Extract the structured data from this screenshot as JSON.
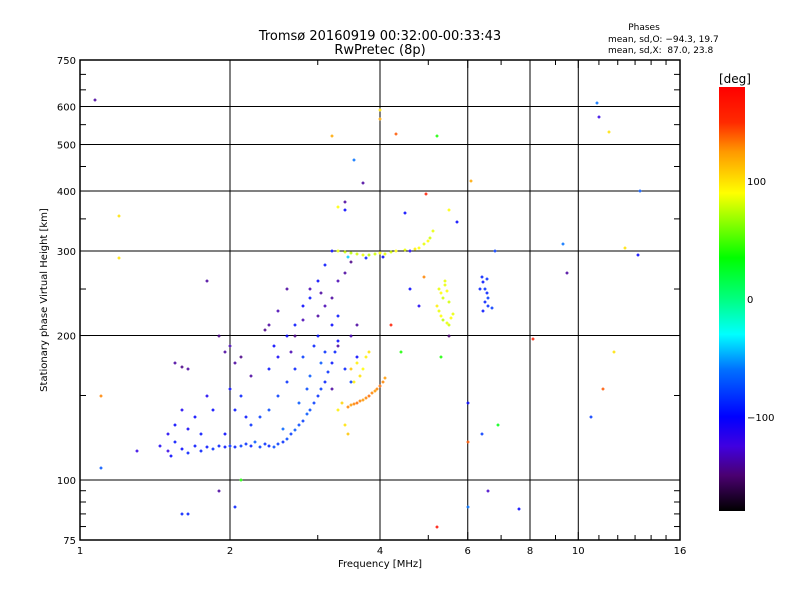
{
  "chart_data": {
    "type": "scatter",
    "title": "Tromsø 20160919 00:32:00-00:33:43",
    "subtitle": "RwPretec (8p)",
    "xlabel": "Frequency [MHz]",
    "ylabel": "Stationary phase Virtual Height [km]",
    "xscale": "log",
    "yscale": "log",
    "xlim": [
      1,
      16
    ],
    "ylim": [
      75,
      750
    ],
    "xticks": [
      1,
      2,
      4,
      6,
      8,
      10,
      16
    ],
    "yticks": [
      75,
      100,
      200,
      300,
      400,
      500,
      600,
      750
    ],
    "xgrid": [
      2,
      4,
      6,
      8,
      10
    ],
    "ygrid": [
      100,
      200,
      300,
      400,
      500,
      600
    ],
    "grid": true,
    "stats": {
      "heading": "Phases",
      "o_line": "mean, sd,O: −94.3, 19.7",
      "x_line": "mean, sd,X:  87.0, 23.8"
    },
    "colorbar": {
      "label": "[deg]",
      "range": [
        -180,
        180
      ],
      "ticks": [
        100,
        0,
        -100
      ],
      "stops": [
        [
          -180,
          "#000000"
        ],
        [
          -150,
          "#4a0070"
        ],
        [
          -125,
          "#4000e0"
        ],
        [
          -100,
          "#0000ff"
        ],
        [
          -60,
          "#0070ff"
        ],
        [
          -30,
          "#00ffff"
        ],
        [
          0,
          "#00ff80"
        ],
        [
          35,
          "#00ff00"
        ],
        [
          90,
          "#ffff00"
        ],
        [
          125,
          "#ff9900"
        ],
        [
          150,
          "#ff2a00"
        ],
        [
          180,
          "#ff0000"
        ]
      ]
    },
    "points_columns": [
      "freq_MHz",
      "height_km",
      "phase_deg"
    ],
    "points": [
      [
        1.45,
        118,
        -110
      ],
      [
        1.5,
        115,
        -120
      ],
      [
        1.52,
        112,
        -100
      ],
      [
        1.55,
        120,
        -95
      ],
      [
        1.6,
        116,
        -100
      ],
      [
        1.65,
        114,
        -90
      ],
      [
        1.7,
        118,
        -95
      ],
      [
        1.75,
        115,
        -90
      ],
      [
        1.8,
        117,
        -95
      ],
      [
        1.85,
        116,
        -85
      ],
      [
        1.9,
        118,
        -90
      ],
      [
        1.95,
        117,
        -95
      ],
      [
        2.0,
        118,
        -85
      ],
      [
        2.05,
        117,
        -90
      ],
      [
        2.1,
        118,
        -80
      ],
      [
        2.15,
        119,
        -85
      ],
      [
        2.2,
        118,
        -90
      ],
      [
        2.3,
        117,
        -80
      ],
      [
        2.35,
        119,
        -85
      ],
      [
        2.4,
        118,
        -90
      ],
      [
        2.45,
        117,
        -75
      ],
      [
        2.5,
        119,
        -80
      ],
      [
        2.55,
        120,
        -85
      ],
      [
        2.6,
        122,
        -75
      ],
      [
        2.65,
        125,
        -80
      ],
      [
        2.7,
        127,
        -70
      ],
      [
        2.75,
        130,
        -75
      ],
      [
        2.8,
        133,
        -80
      ],
      [
        2.85,
        137,
        -70
      ],
      [
        2.9,
        140,
        -75
      ],
      [
        2.95,
        145,
        -80
      ],
      [
        3.0,
        150,
        -85
      ],
      [
        3.05,
        155,
        -80
      ],
      [
        3.1,
        160,
        -90
      ],
      [
        3.15,
        168,
        -85
      ],
      [
        3.2,
        175,
        -95
      ],
      [
        3.25,
        185,
        -90
      ],
      [
        3.3,
        195,
        -100
      ],
      [
        1.5,
        125,
        -110
      ],
      [
        1.55,
        130,
        -100
      ],
      [
        1.6,
        140,
        -110
      ],
      [
        1.65,
        128,
        -105
      ],
      [
        1.7,
        135,
        -100
      ],
      [
        1.75,
        125,
        -95
      ],
      [
        1.8,
        150,
        -110
      ],
      [
        1.85,
        140,
        -100
      ],
      [
        2.0,
        155,
        -100
      ],
      [
        2.05,
        140,
        -95
      ],
      [
        2.1,
        150,
        -90
      ],
      [
        2.2,
        130,
        -85
      ],
      [
        2.3,
        135,
        -80
      ],
      [
        2.4,
        140,
        -75
      ],
      [
        2.5,
        150,
        -80
      ],
      [
        2.6,
        160,
        -85
      ],
      [
        2.7,
        170,
        -90
      ],
      [
        2.8,
        180,
        -80
      ],
      [
        2.9,
        165,
        -70
      ],
      [
        2.95,
        190,
        -90
      ],
      [
        3.0,
        200,
        -95
      ],
      [
        3.1,
        185,
        -85
      ],
      [
        3.2,
        210,
        -100
      ],
      [
        3.3,
        220,
        -95
      ],
      [
        3.4,
        170,
        -90
      ],
      [
        3.5,
        160,
        -80
      ],
      [
        3.6,
        180,
        -100
      ],
      [
        2.6,
        200,
        -100
      ],
      [
        2.7,
        210,
        -95
      ],
      [
        2.8,
        230,
        -100
      ],
      [
        2.9,
        240,
        -95
      ],
      [
        3.0,
        260,
        -100
      ],
      [
        3.1,
        280,
        -95
      ],
      [
        3.2,
        300,
        -100
      ],
      [
        2.5,
        180,
        -105
      ],
      [
        2.45,
        190,
        -100
      ],
      [
        2.4,
        170,
        -95
      ],
      [
        2.25,
        120,
        -70
      ],
      [
        2.55,
        128,
        -65
      ],
      [
        2.75,
        145,
        -70
      ],
      [
        2.85,
        155,
        -75
      ],
      [
        3.05,
        175,
        -70
      ],
      [
        1.95,
        125,
        -100
      ],
      [
        2.15,
        135,
        -95
      ],
      [
        1.55,
        175,
        -140
      ],
      [
        1.6,
        172,
        -145
      ],
      [
        1.65,
        170,
        -140
      ],
      [
        1.8,
        260,
        -140
      ],
      [
        1.9,
        200,
        -145
      ],
      [
        1.95,
        185,
        -140
      ],
      [
        2.0,
        190,
        -135
      ],
      [
        2.05,
        175,
        -140
      ],
      [
        2.1,
        180,
        -145
      ],
      [
        2.4,
        210,
        -140
      ],
      [
        2.5,
        225,
        -135
      ],
      [
        2.6,
        250,
        -140
      ],
      [
        2.7,
        200,
        -145
      ],
      [
        2.8,
        215,
        -135
      ],
      [
        3.0,
        220,
        -140
      ],
      [
        3.1,
        230,
        -135
      ],
      [
        3.2,
        240,
        -140
      ],
      [
        3.3,
        260,
        -135
      ],
      [
        3.4,
        270,
        -140
      ],
      [
        3.5,
        285,
        -145
      ],
      [
        3.3,
        190,
        -140
      ],
      [
        3.5,
        200,
        -135
      ],
      [
        3.6,
        210,
        -140
      ],
      [
        2.9,
        250,
        -135
      ],
      [
        3.2,
        155,
        -140
      ],
      [
        2.2,
        165,
        -140
      ],
      [
        2.35,
        205,
        -145
      ],
      [
        3.4,
        380,
        -140
      ],
      [
        3.7,
        415,
        -140
      ],
      [
        2.65,
        185,
        -135
      ],
      [
        3.05,
        245,
        -140
      ],
      [
        3.45,
        142,
        130
      ],
      [
        3.5,
        143,
        125
      ],
      [
        3.55,
        144,
        130
      ],
      [
        3.6,
        145,
        135
      ],
      [
        3.65,
        146,
        130
      ],
      [
        3.7,
        147,
        125
      ],
      [
        3.75,
        148,
        130
      ],
      [
        3.8,
        150,
        135
      ],
      [
        3.85,
        152,
        130
      ],
      [
        3.9,
        153,
        125
      ],
      [
        3.95,
        155,
        130
      ],
      [
        4.0,
        157,
        135
      ],
      [
        4.05,
        160,
        130
      ],
      [
        4.1,
        163,
        125
      ],
      [
        3.6,
        175,
        95
      ],
      [
        3.65,
        165,
        100
      ],
      [
        3.7,
        170,
        90
      ],
      [
        3.75,
        180,
        95
      ],
      [
        3.8,
        185,
        100
      ],
      [
        3.5,
        170,
        110
      ],
      [
        3.55,
        160,
        95
      ],
      [
        3.4,
        130,
        100
      ],
      [
        3.45,
        125,
        110
      ],
      [
        3.3,
        140,
        95
      ],
      [
        3.35,
        145,
        105
      ],
      [
        3.3,
        300,
        85
      ],
      [
        3.4,
        298,
        80
      ],
      [
        3.5,
        297,
        75
      ],
      [
        3.6,
        296,
        80
      ],
      [
        3.7,
        295,
        85
      ],
      [
        3.8,
        294,
        75
      ],
      [
        3.9,
        296,
        80
      ],
      [
        4.0,
        297,
        90
      ],
      [
        4.1,
        296,
        85
      ],
      [
        4.2,
        298,
        80
      ],
      [
        4.3,
        300,
        90
      ],
      [
        4.5,
        301,
        85
      ],
      [
        4.7,
        303,
        95
      ],
      [
        4.8,
        305,
        90
      ],
      [
        4.9,
        310,
        85
      ],
      [
        5.0,
        315,
        90
      ],
      [
        5.05,
        320,
        80
      ],
      [
        5.1,
        330,
        85
      ],
      [
        3.45,
        292,
        -40
      ],
      [
        3.75,
        290,
        -90
      ],
      [
        4.05,
        292,
        -100
      ],
      [
        4.6,
        300,
        -110
      ],
      [
        3.3,
        370,
        90
      ],
      [
        3.4,
        365,
        -100
      ],
      [
        5.25,
        250,
        85
      ],
      [
        5.3,
        245,
        90
      ],
      [
        5.35,
        240,
        80
      ],
      [
        5.4,
        255,
        85
      ],
      [
        5.45,
        248,
        90
      ],
      [
        5.5,
        235,
        80
      ],
      [
        5.25,
        225,
        85
      ],
      [
        5.3,
        220,
        90
      ],
      [
        5.35,
        215,
        75
      ],
      [
        5.45,
        212,
        85
      ],
      [
        5.5,
        210,
        80
      ],
      [
        5.55,
        218,
        90
      ],
      [
        5.6,
        222,
        85
      ],
      [
        5.2,
        230,
        95
      ],
      [
        5.4,
        260,
        85
      ],
      [
        6.4,
        265,
        -90
      ],
      [
        6.45,
        258,
        -95
      ],
      [
        6.5,
        250,
        -85
      ],
      [
        6.55,
        245,
        -90
      ],
      [
        6.6,
        240,
        -80
      ],
      [
        6.5,
        235,
        -90
      ],
      [
        6.6,
        230,
        -85
      ],
      [
        6.45,
        225,
        -95
      ],
      [
        6.35,
        250,
        -90
      ],
      [
        6.55,
        262,
        -85
      ],
      [
        6.7,
        228,
        -80
      ],
      [
        1.07,
        620,
        -140
      ],
      [
        1.1,
        106,
        -70
      ],
      [
        1.1,
        150,
        130
      ],
      [
        1.2,
        355,
        100
      ],
      [
        1.2,
        290,
        100
      ],
      [
        1.3,
        115,
        -120
      ],
      [
        1.6,
        85,
        -90
      ],
      [
        1.65,
        85,
        -90
      ],
      [
        1.9,
        95,
        -140
      ],
      [
        2.05,
        88,
        -90
      ],
      [
        2.1,
        100,
        40
      ],
      [
        3.2,
        520,
        120
      ],
      [
        3.55,
        465,
        -60
      ],
      [
        4.0,
        590,
        100
      ],
      [
        4.0,
        565,
        120
      ],
      [
        4.3,
        525,
        140
      ],
      [
        4.5,
        360,
        -100
      ],
      [
        4.95,
        395,
        160
      ],
      [
        5.2,
        80,
        170
      ],
      [
        5.2,
        520,
        40
      ],
      [
        5.5,
        200,
        -150
      ],
      [
        5.5,
        365,
        90
      ],
      [
        5.7,
        345,
        -100
      ],
      [
        6.1,
        420,
        120
      ],
      [
        6.0,
        145,
        -100
      ],
      [
        6.0,
        120,
        140
      ],
      [
        6.4,
        125,
        -80
      ],
      [
        6.6,
        95,
        -130
      ],
      [
        6.8,
        300,
        -80
      ],
      [
        7.6,
        87,
        -100
      ],
      [
        8.1,
        197,
        160
      ],
      [
        9.3,
        310,
        -60
      ],
      [
        9.5,
        270,
        -140
      ],
      [
        10.9,
        610,
        -60
      ],
      [
        11.0,
        570,
        -120
      ],
      [
        11.2,
        155,
        140
      ],
      [
        11.5,
        530,
        100
      ],
      [
        11.8,
        185,
        100
      ],
      [
        12.4,
        305,
        100
      ],
      [
        13.3,
        400,
        -70
      ],
      [
        13.2,
        295,
        -100
      ],
      [
        10.6,
        135,
        -80
      ],
      [
        6.0,
        88,
        -60
      ],
      [
        6.9,
        130,
        30
      ],
      [
        5.3,
        180,
        40
      ],
      [
        4.9,
        265,
        130
      ],
      [
        4.2,
        210,
        160
      ],
      [
        4.4,
        185,
        40
      ],
      [
        4.6,
        250,
        -100
      ],
      [
        4.8,
        230,
        -110
      ]
    ]
  }
}
